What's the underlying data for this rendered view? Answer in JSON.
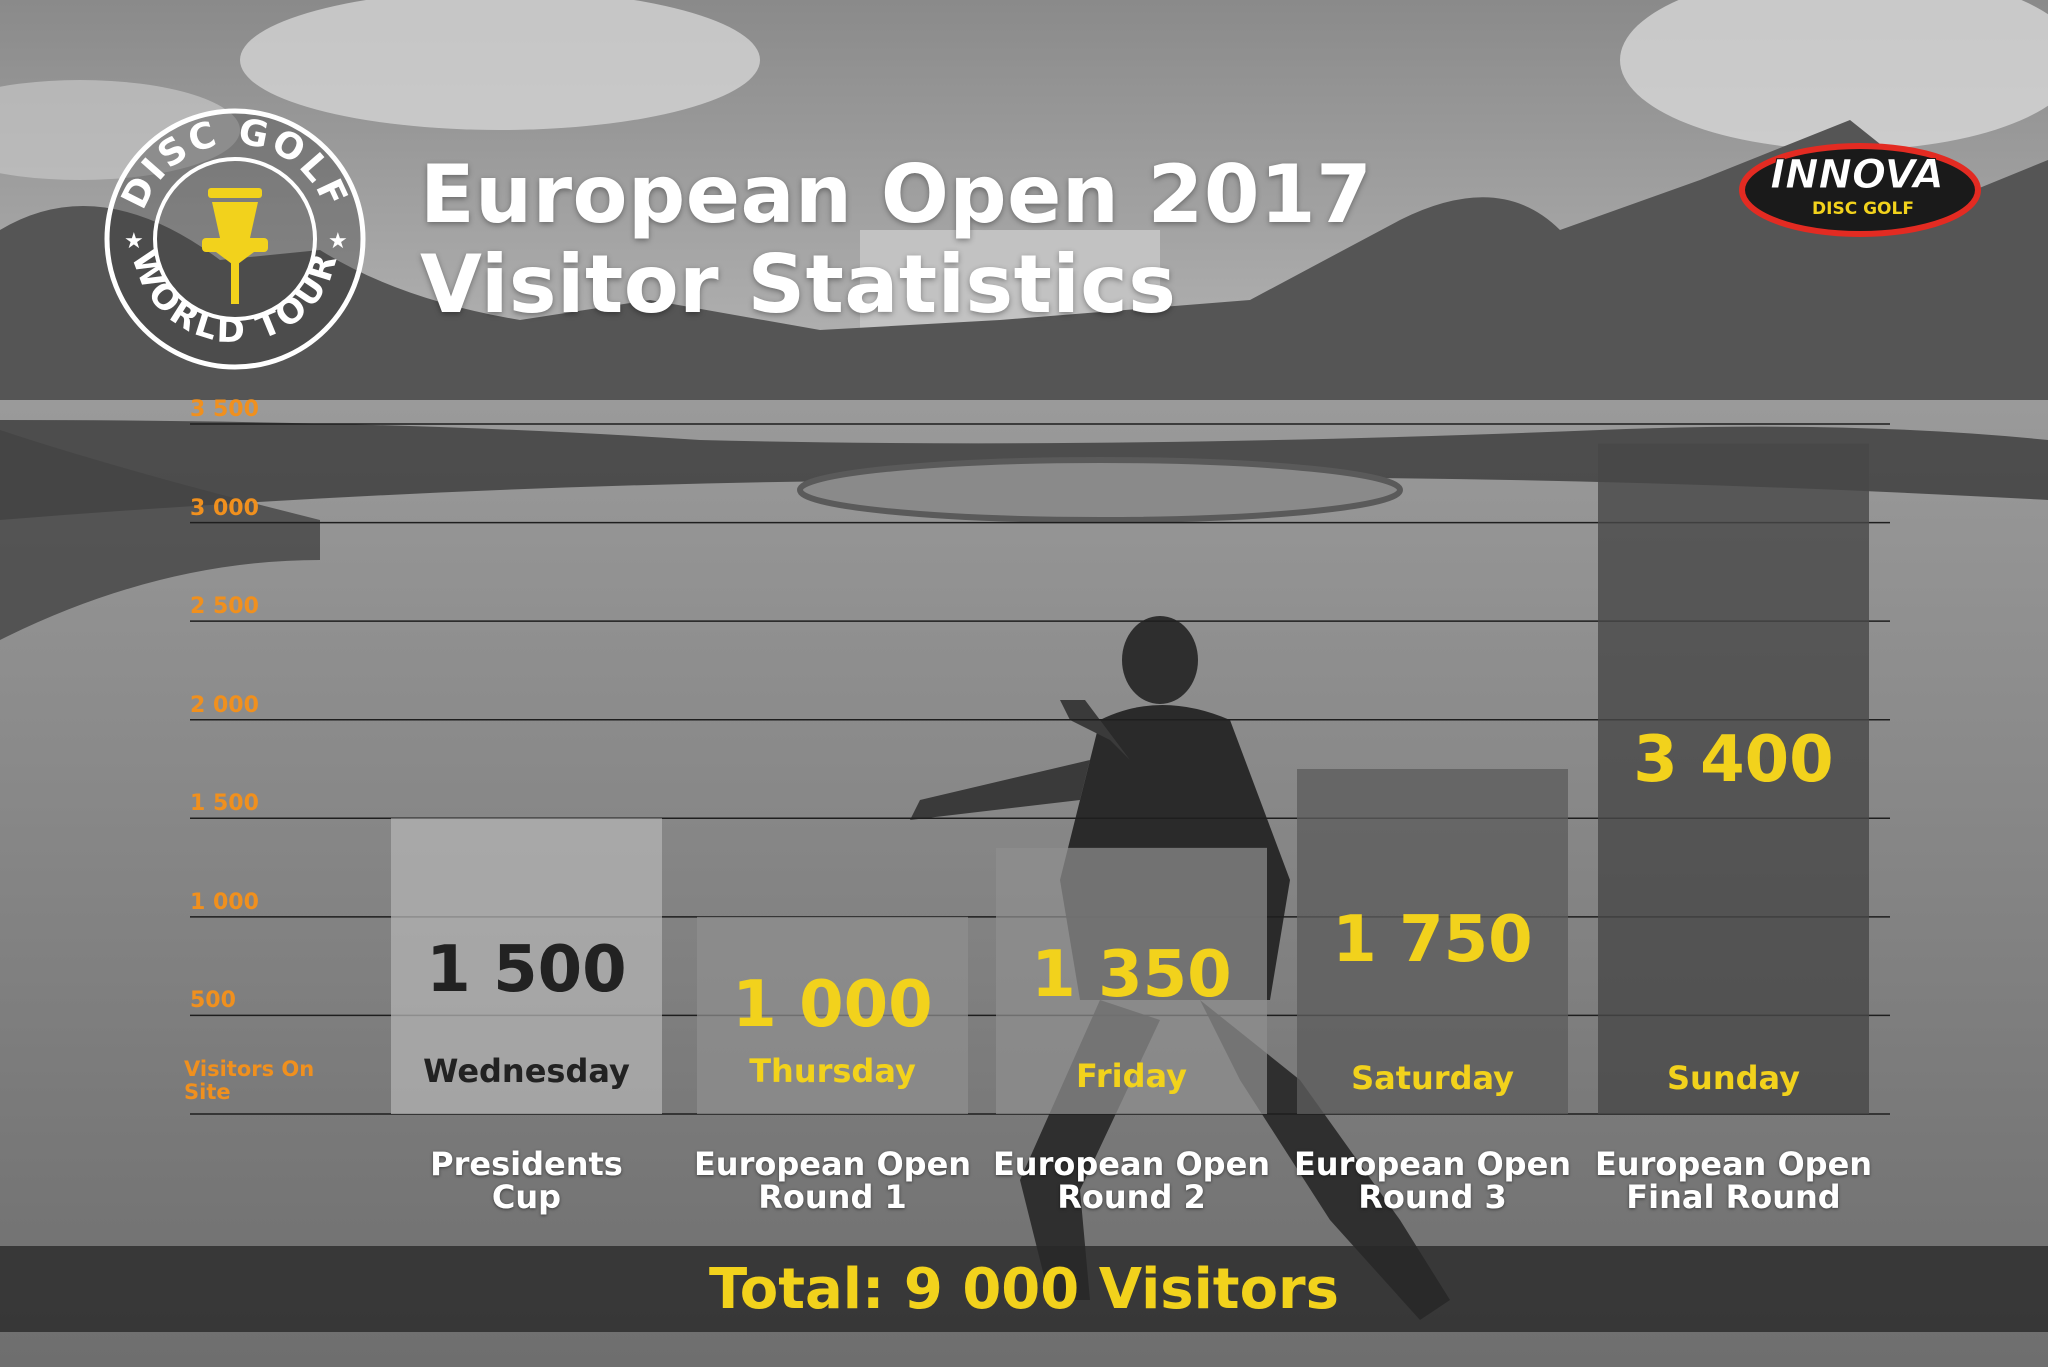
{
  "title": {
    "line1": "European Open 2017",
    "line2": "Visitor Statistics"
  },
  "logos": {
    "left_badge": {
      "top_text": "DISC GOLF",
      "bottom_text": "WORLD TOUR",
      "icon": "disc-golf-basket-icon"
    },
    "right_brand": {
      "name": "INNOVA",
      "tagline": "DISC GOLF"
    }
  },
  "colors": {
    "accent_yellow": "#f2d21c",
    "axis_orange": "#f0901e",
    "bar_light": "#b3b3b3",
    "bar_mid": "#8f8f8f",
    "bar_dark": "#5c5c5c",
    "bar_darkest": "#474747"
  },
  "chart_data": {
    "type": "bar",
    "ylabel": "Visitors On Site",
    "ylim": [
      0,
      3500
    ],
    "yticks": [
      "3 500",
      "3 000",
      "2 500",
      "2 000",
      "1 500",
      "1 000",
      "500"
    ],
    "ytick_values": [
      3500,
      3000,
      2500,
      2000,
      1500,
      1000,
      500
    ],
    "grid": true,
    "categories": [
      "Presidents Cup",
      "European Open Round 1",
      "European Open Round 2",
      "European Open Round 3",
      "European Open Final Round"
    ],
    "event_lines": [
      [
        "Presidents",
        "Cup"
      ],
      [
        "European Open",
        "Round 1"
      ],
      [
        "European Open",
        "Round 2"
      ],
      [
        "European Open",
        "Round 3"
      ],
      [
        "European Open",
        "Final Round"
      ]
    ],
    "days": [
      "Wednesday",
      "Thursday",
      "Friday",
      "Saturday",
      "Sunday"
    ],
    "values": [
      1500,
      1000,
      1350,
      1750,
      3400
    ],
    "value_labels": [
      "1 500",
      "1 000",
      "1 350",
      "1 750",
      "3 400"
    ]
  },
  "total": {
    "text": "Total: 9 000 Visitors"
  }
}
